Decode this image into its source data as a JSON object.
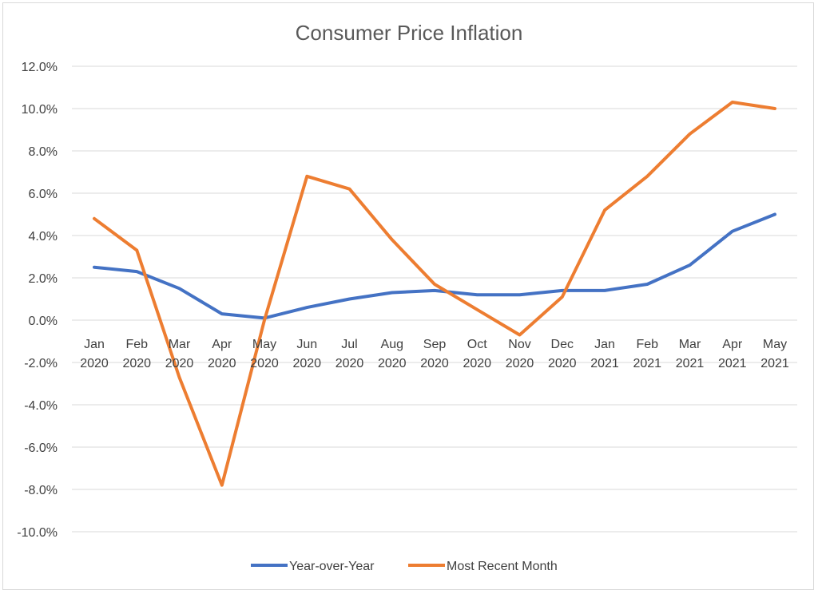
{
  "chart_data": {
    "type": "line",
    "title": "Consumer Price Inflation",
    "xlabel": "",
    "ylabel": "",
    "categories": [
      [
        "Jan",
        "2020"
      ],
      [
        "Feb",
        "2020"
      ],
      [
        "Mar",
        "2020"
      ],
      [
        "Apr",
        "2020"
      ],
      [
        "May",
        "2020"
      ],
      [
        "Jun",
        "2020"
      ],
      [
        "Jul",
        "2020"
      ],
      [
        "Aug",
        "2020"
      ],
      [
        "Sep",
        "2020"
      ],
      [
        "Oct",
        "2020"
      ],
      [
        "Nov",
        "2020"
      ],
      [
        "Dec",
        "2020"
      ],
      [
        "Jan",
        "2021"
      ],
      [
        "Feb",
        "2021"
      ],
      [
        "Mar",
        "2021"
      ],
      [
        "Apr",
        "2021"
      ],
      [
        "May",
        "2021"
      ]
    ],
    "y_ticks": [
      "12.0%",
      "10.0%",
      "8.0%",
      "6.0%",
      "4.0%",
      "2.0%",
      "0.0%",
      "-2.0%",
      "-4.0%",
      "-6.0%",
      "-8.0%",
      "-10.0%"
    ],
    "ylim": [
      -10,
      12
    ],
    "grid": true,
    "legend_position": "bottom",
    "series": [
      {
        "name": "Year-over-Year",
        "color": "#4472c4",
        "values": [
          2.5,
          2.3,
          1.5,
          0.3,
          0.1,
          0.6,
          1.0,
          1.3,
          1.4,
          1.2,
          1.2,
          1.4,
          1.4,
          1.7,
          2.6,
          4.2,
          5.0
        ]
      },
      {
        "name": "Most Recent Month",
        "color": "#ed7d31",
        "values": [
          4.8,
          3.3,
          -2.7,
          -7.8,
          0.0,
          6.8,
          6.2,
          3.8,
          1.7,
          0.5,
          -0.7,
          1.1,
          5.2,
          6.8,
          8.8,
          10.3,
          10.0
        ]
      }
    ]
  }
}
